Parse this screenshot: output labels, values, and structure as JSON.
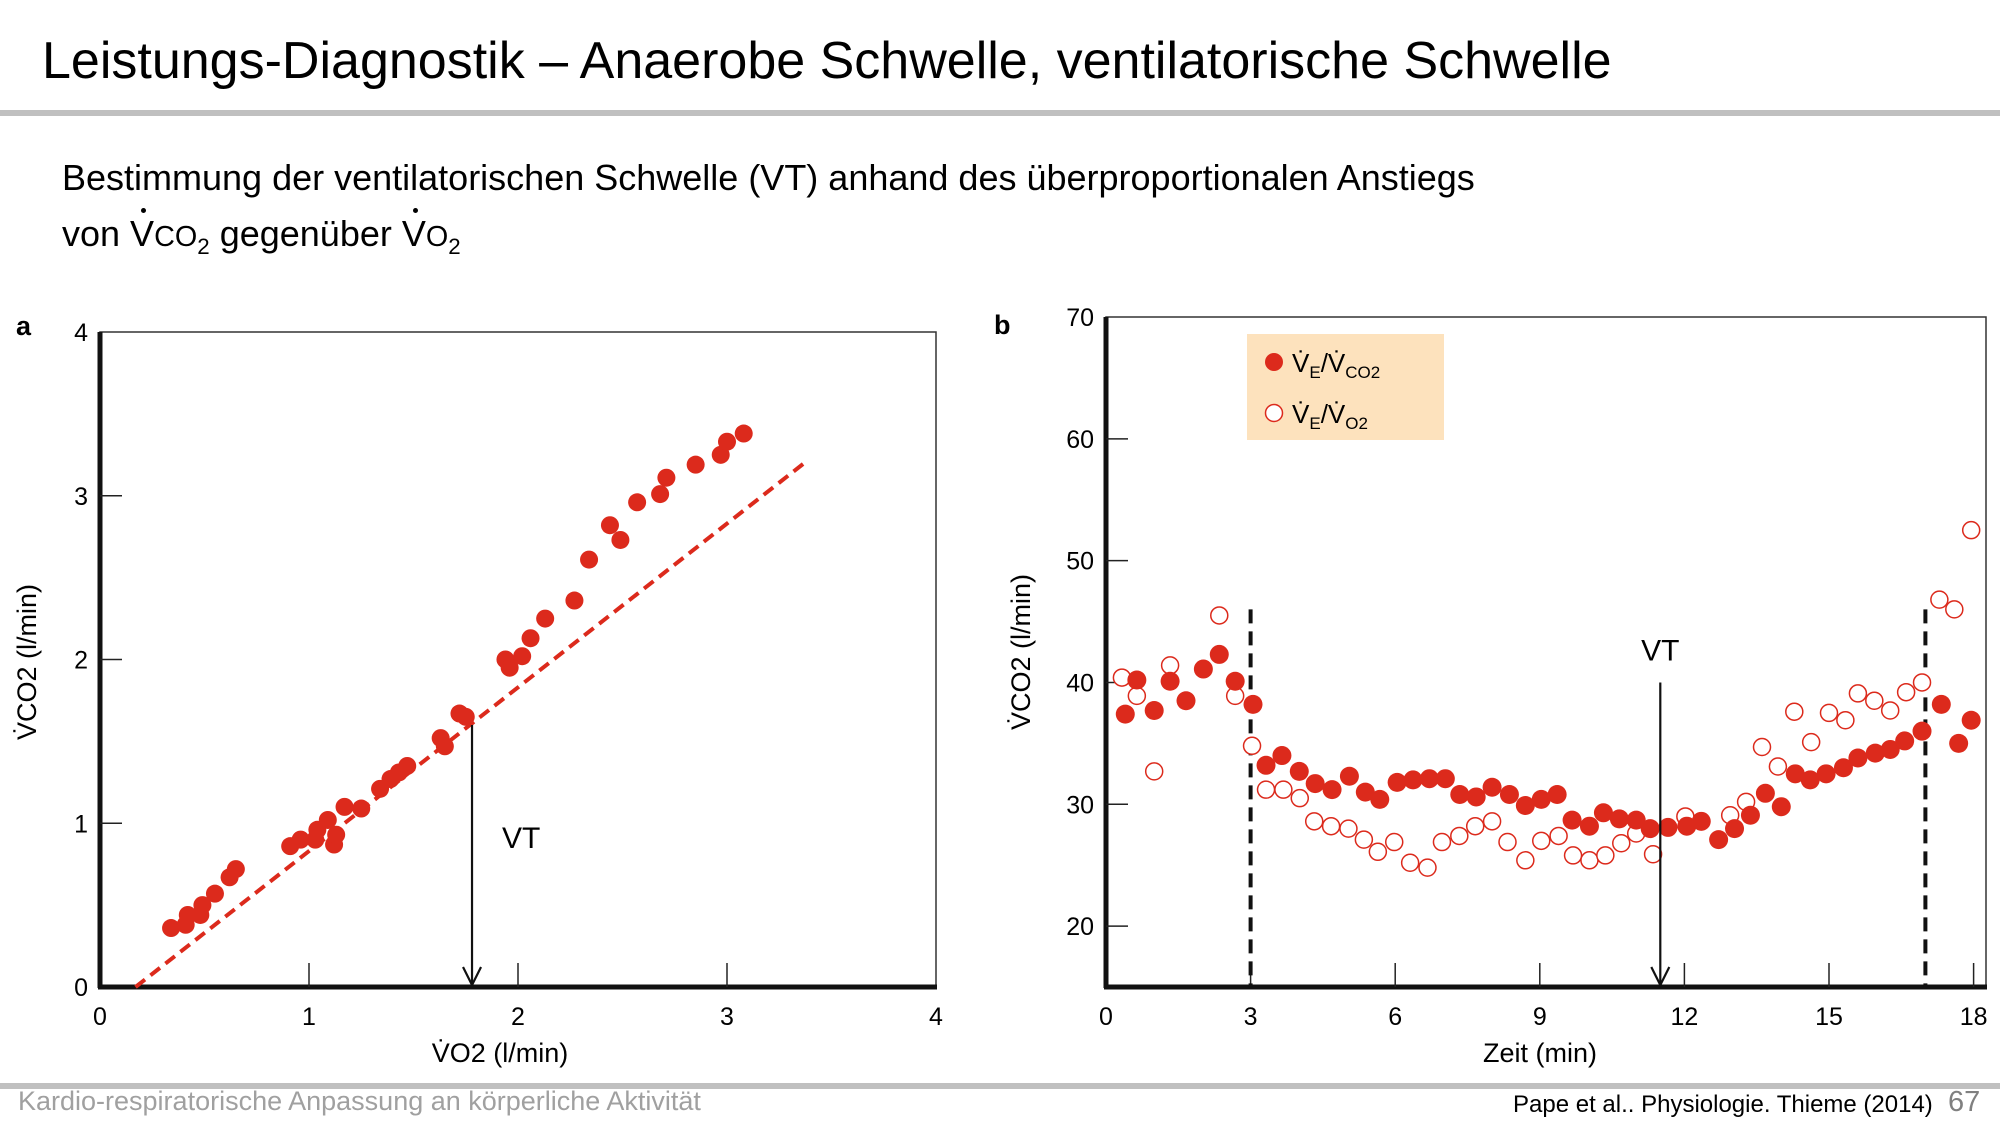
{
  "slide": {
    "title": "Leistungs-Diagnostik – Anaerobe Schwelle, ventilatorische Schwelle",
    "subtitle_line1": "Bestimmung der ventilatorischen Schwelle (VT) anhand des überproportionalen Anstiegs",
    "subtitle_line2_parts": {
      "von": "von ",
      "v": "V",
      "co2": "CO",
      "co2_sub": "2",
      "mid": " gegenüber ",
      "v2": "V",
      "o2": "O",
      "o2_sub": "2"
    },
    "footer_left": "Kardio-respiratorische Anpassung an körperliche Aktivität",
    "citation": "Pape et al.. Physiologie. Thieme (2014)",
    "page_number": "67"
  },
  "colors": {
    "marker": "#dc2a1c",
    "legend_bg": "#fde2bd",
    "separator": "#c0c0c0",
    "footer_text": "#a0a0a0"
  },
  "chart_data": [
    {
      "panel_label": "a",
      "type": "scatter",
      "title": "",
      "xlabel": "V̇O2 (l/min)",
      "ylabel": "V̇CO2 (l/min)",
      "xlim": [
        0,
        4
      ],
      "ylim": [
        0,
        4
      ],
      "xticks": [
        0,
        1,
        2,
        3,
        4
      ],
      "yticks": [
        0,
        1,
        2,
        3,
        4
      ],
      "grid": false,
      "series": [
        {
          "name": "V̇CO2 vs V̇O2",
          "marker": "filled-circle",
          "points": [
            [
              0.34,
              0.36
            ],
            [
              0.41,
              0.38
            ],
            [
              0.42,
              0.44
            ],
            [
              0.48,
              0.44
            ],
            [
              0.49,
              0.5
            ],
            [
              0.55,
              0.57
            ],
            [
              0.62,
              0.67
            ],
            [
              0.65,
              0.72
            ],
            [
              0.91,
              0.86
            ],
            [
              0.96,
              0.9
            ],
            [
              1.03,
              0.9
            ],
            [
              1.04,
              0.96
            ],
            [
              1.09,
              1.02
            ],
            [
              1.12,
              0.87
            ],
            [
              1.13,
              0.93
            ],
            [
              1.17,
              1.1
            ],
            [
              1.25,
              1.09
            ],
            [
              1.34,
              1.21
            ],
            [
              1.39,
              1.27
            ],
            [
              1.43,
              1.31
            ],
            [
              1.47,
              1.35
            ],
            [
              1.63,
              1.52
            ],
            [
              1.65,
              1.47
            ],
            [
              1.72,
              1.67
            ],
            [
              1.75,
              1.65
            ],
            [
              1.94,
              2.0
            ],
            [
              1.96,
              1.95
            ],
            [
              2.02,
              2.02
            ],
            [
              2.06,
              2.13
            ],
            [
              2.13,
              2.25
            ],
            [
              2.27,
              2.36
            ],
            [
              2.34,
              2.61
            ],
            [
              2.44,
              2.82
            ],
            [
              2.49,
              2.73
            ],
            [
              2.57,
              2.96
            ],
            [
              2.68,
              3.01
            ],
            [
              2.71,
              3.11
            ],
            [
              2.85,
              3.19
            ],
            [
              2.97,
              3.25
            ],
            [
              3.0,
              3.33
            ],
            [
              3.08,
              3.38
            ]
          ]
        }
      ],
      "reference_line": {
        "style": "dashed",
        "from": [
          0.17,
          0
        ],
        "to": [
          3.37,
          3.2
        ]
      },
      "annotations": [
        {
          "text": "VT",
          "type": "arrow-down",
          "x": 1.78,
          "y_from": 1.6,
          "y_to": 0
        }
      ]
    },
    {
      "panel_label": "b",
      "type": "scatter",
      "title": "",
      "xlabel": "Zeit (min)",
      "ylabel": "V̇CO2 (l/min)",
      "xlim": [
        0,
        18.4
      ],
      "ylim": [
        15,
        70
      ],
      "xticks": [
        0,
        3,
        6,
        9,
        12,
        15,
        18
      ],
      "yticks": [
        20,
        30,
        40,
        50,
        60,
        70
      ],
      "grid": false,
      "legend": {
        "placement": "top-left",
        "entries": [
          {
            "marker": "filled-circle",
            "label_main": "V̇",
            "label_sub1": "E",
            "label_slash": "/V̇",
            "label_sub2": "CO2"
          },
          {
            "marker": "open-circle",
            "label_main": "V̇",
            "label_sub1": "E",
            "label_slash": "/V̇",
            "label_sub2": "O2"
          }
        ]
      },
      "series": [
        {
          "name": "V̇E/V̇CO2",
          "marker": "filled-circle",
          "points": [
            [
              0.4,
              37.4
            ],
            [
              0.64,
              40.2
            ],
            [
              1.0,
              37.7
            ],
            [
              1.33,
              40.1
            ],
            [
              1.66,
              38.5
            ],
            [
              2.02,
              41.1
            ],
            [
              2.35,
              42.3
            ],
            [
              2.68,
              40.1
            ],
            [
              3.05,
              38.2
            ],
            [
              3.32,
              33.2
            ],
            [
              3.65,
              34.0
            ],
            [
              4.01,
              32.7
            ],
            [
              4.34,
              31.7
            ],
            [
              4.69,
              31.2
            ],
            [
              5.05,
              32.3
            ],
            [
              5.38,
              31.0
            ],
            [
              5.68,
              30.4
            ],
            [
              6.04,
              31.8
            ],
            [
              6.37,
              32.0
            ],
            [
              6.71,
              32.1
            ],
            [
              7.04,
              32.1
            ],
            [
              7.34,
              30.8
            ],
            [
              7.68,
              30.6
            ],
            [
              8.01,
              31.4
            ],
            [
              8.37,
              30.8
            ],
            [
              8.7,
              29.9
            ],
            [
              9.03,
              30.4
            ],
            [
              9.36,
              30.8
            ],
            [
              9.67,
              28.7
            ],
            [
              10.03,
              28.2
            ],
            [
              10.32,
              29.3
            ],
            [
              10.65,
              28.8
            ],
            [
              11.0,
              28.7
            ],
            [
              11.29,
              28.0
            ],
            [
              11.66,
              28.1
            ],
            [
              12.05,
              28.2
            ],
            [
              12.35,
              28.6
            ],
            [
              12.71,
              27.1
            ],
            [
              13.04,
              28.0
            ],
            [
              13.37,
              29.1
            ],
            [
              13.68,
              30.9
            ],
            [
              14.01,
              29.8
            ],
            [
              14.3,
              32.5
            ],
            [
              14.61,
              32.0
            ],
            [
              14.94,
              32.5
            ],
            [
              15.3,
              33.0
            ],
            [
              15.6,
              33.8
            ],
            [
              15.96,
              34.2
            ],
            [
              16.27,
              34.5
            ],
            [
              16.57,
              35.2
            ],
            [
              16.93,
              36.0
            ],
            [
              17.33,
              38.2
            ],
            [
              17.69,
              35.0
            ],
            [
              17.95,
              36.9
            ]
          ]
        },
        {
          "name": "V̇E/V̇O2",
          "marker": "open-circle",
          "points": [
            [
              0.33,
              40.4
            ],
            [
              0.64,
              38.9
            ],
            [
              1.0,
              32.7
            ],
            [
              1.33,
              41.4
            ],
            [
              2.35,
              45.5
            ],
            [
              2.68,
              38.9
            ],
            [
              3.03,
              34.8
            ],
            [
              3.32,
              31.2
            ],
            [
              3.68,
              31.2
            ],
            [
              4.02,
              30.5
            ],
            [
              4.32,
              28.6
            ],
            [
              4.67,
              28.2
            ],
            [
              5.03,
              28.0
            ],
            [
              5.35,
              27.1
            ],
            [
              5.64,
              26.1
            ],
            [
              5.98,
              26.9
            ],
            [
              6.31,
              25.2
            ],
            [
              6.67,
              24.8
            ],
            [
              6.97,
              26.9
            ],
            [
              7.33,
              27.4
            ],
            [
              7.66,
              28.2
            ],
            [
              8.01,
              28.6
            ],
            [
              8.33,
              26.9
            ],
            [
              8.7,
              25.4
            ],
            [
              9.03,
              27.0
            ],
            [
              9.39,
              27.4
            ],
            [
              9.69,
              25.8
            ],
            [
              10.03,
              25.4
            ],
            [
              10.36,
              25.8
            ],
            [
              10.69,
              26.8
            ],
            [
              11.0,
              27.6
            ],
            [
              11.35,
              25.9
            ],
            [
              12.02,
              29.0
            ],
            [
              12.95,
              29.1
            ],
            [
              13.28,
              30.2
            ],
            [
              13.61,
              34.7
            ],
            [
              13.94,
              33.1
            ],
            [
              14.28,
              37.6
            ],
            [
              14.63,
              35.1
            ],
            [
              15.0,
              37.5
            ],
            [
              15.34,
              36.9
            ],
            [
              15.6,
              39.1
            ],
            [
              15.94,
              38.5
            ],
            [
              16.27,
              37.7
            ],
            [
              16.6,
              39.2
            ],
            [
              16.93,
              40.0
            ],
            [
              17.29,
              46.8
            ],
            [
              17.6,
              46.0
            ],
            [
              17.95,
              52.5
            ]
          ]
        }
      ],
      "vertical_markers": [
        {
          "x": 3,
          "style": "dashed",
          "y_top": 46
        },
        {
          "x": 17,
          "style": "dashed",
          "y_top": 46
        }
      ],
      "annotations": [
        {
          "text": "VT",
          "type": "arrow-down",
          "x": 11.5,
          "y_from": 40,
          "y_to": 15
        }
      ]
    }
  ]
}
